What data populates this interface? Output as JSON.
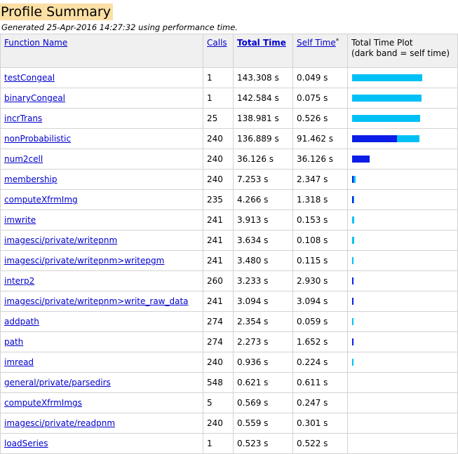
{
  "header": {
    "title": "Profile Summary",
    "subtitle": "Generated 25-Apr-2016 14:27:32 using performance time."
  },
  "table": {
    "columns": {
      "function_name": "Function Name",
      "calls": "Calls",
      "total_time": "Total Time",
      "self_time": "Self Time",
      "self_time_marker": "*",
      "plot_line1": "Total Time Plot",
      "plot_line2": "(dark band = self time)"
    },
    "colors": {
      "total_band": "#00c0f6",
      "self_band": "#0b1de6",
      "link": "#0000cc",
      "title_bg": "#fbdfa4"
    },
    "rows": [
      {
        "name": "testCongeal",
        "calls": "1",
        "total": "143.308 s",
        "self": "0.049 s",
        "total_sec": 143.308,
        "self_sec": 0.049
      },
      {
        "name": "binaryCongeal",
        "calls": "1",
        "total": "142.584 s",
        "self": "0.075 s",
        "total_sec": 142.584,
        "self_sec": 0.075
      },
      {
        "name": "incrTrans",
        "calls": "25",
        "total": "138.981 s",
        "self": "0.526 s",
        "total_sec": 138.981,
        "self_sec": 0.526
      },
      {
        "name": "nonProbabilistic",
        "calls": "240",
        "total": "136.889 s",
        "self": "91.462 s",
        "total_sec": 136.889,
        "self_sec": 91.462
      },
      {
        "name": "num2cell",
        "calls": "240",
        "total": "36.126 s",
        "self": "36.126 s",
        "total_sec": 36.126,
        "self_sec": 36.126
      },
      {
        "name": "membership",
        "calls": "240",
        "total": "7.253 s",
        "self": "2.347 s",
        "total_sec": 7.253,
        "self_sec": 2.347
      },
      {
        "name": "computeXfrmImg",
        "calls": "235",
        "total": "4.266 s",
        "self": "1.318 s",
        "total_sec": 4.266,
        "self_sec": 1.318
      },
      {
        "name": "imwrite",
        "calls": "241",
        "total": "3.913 s",
        "self": "0.153 s",
        "total_sec": 3.913,
        "self_sec": 0.153
      },
      {
        "name": "imagesci/private/writepnm",
        "calls": "241",
        "total": "3.634 s",
        "self": "0.108 s",
        "total_sec": 3.634,
        "self_sec": 0.108
      },
      {
        "name": "imagesci/private/writepnm>writepgm",
        "calls": "241",
        "total": "3.480 s",
        "self": "0.115 s",
        "total_sec": 3.48,
        "self_sec": 0.115
      },
      {
        "name": "interp2",
        "calls": "260",
        "total": "3.233 s",
        "self": "2.930 s",
        "total_sec": 3.233,
        "self_sec": 2.93
      },
      {
        "name": "imagesci/private/writepnm>write_raw_data",
        "calls": "241",
        "total": "3.094 s",
        "self": "3.094 s",
        "total_sec": 3.094,
        "self_sec": 3.094
      },
      {
        "name": "addpath",
        "calls": "274",
        "total": "2.354 s",
        "self": "0.059 s",
        "total_sec": 2.354,
        "self_sec": 0.059
      },
      {
        "name": "path",
        "calls": "274",
        "total": "2.273 s",
        "self": "1.652 s",
        "total_sec": 2.273,
        "self_sec": 1.652
      },
      {
        "name": "imread",
        "calls": "240",
        "total": "0.936 s",
        "self": "0.224 s",
        "total_sec": 0.936,
        "self_sec": 0.224
      },
      {
        "name": "general/private/parsedirs",
        "calls": "548",
        "total": "0.621 s",
        "self": "0.611 s",
        "total_sec": 0.621,
        "self_sec": 0.611
      },
      {
        "name": "computeXfrmImgs",
        "calls": "5",
        "total": "0.569 s",
        "self": "0.247 s",
        "total_sec": 0.569,
        "self_sec": 0.247
      },
      {
        "name": "imagesci/private/readpnm",
        "calls": "240",
        "total": "0.559 s",
        "self": "0.301 s",
        "total_sec": 0.559,
        "self_sec": 0.301
      },
      {
        "name": "loadSeries",
        "calls": "1",
        "total": "0.523 s",
        "self": "0.522 s",
        "total_sec": 0.523,
        "self_sec": 0.522
      }
    ]
  }
}
